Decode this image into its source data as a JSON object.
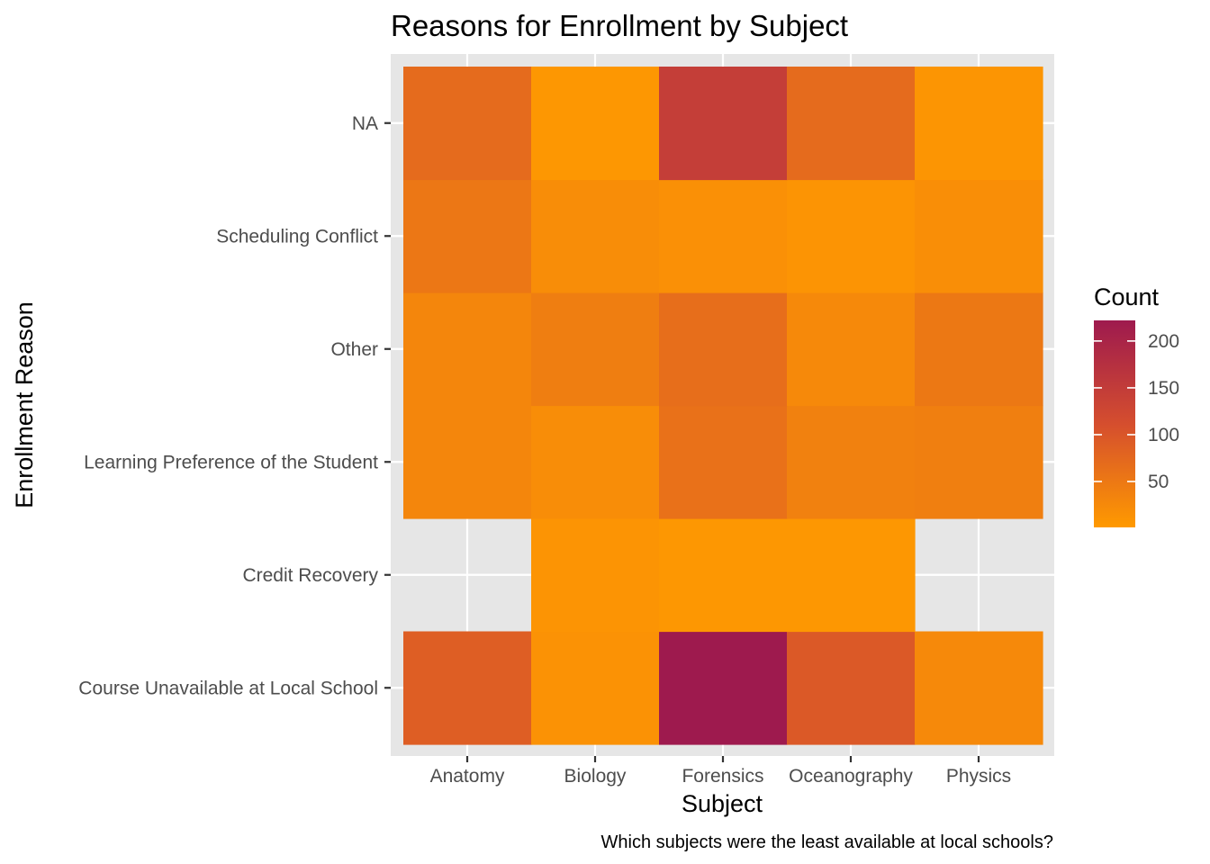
{
  "chart_data": {
    "type": "heatmap",
    "title": "Reasons for Enrollment by Subject",
    "xlabel": "Subject",
    "ylabel": "Enrollment Reason",
    "caption": "Which subjects were the least available at local schools?",
    "x_categories": [
      "Anatomy",
      "Biology",
      "Forensics",
      "Oceanography",
      "Physics"
    ],
    "y_categories": [
      "Course Unavailable at Local School",
      "Credit Recovery",
      "Learning Preference of the Student",
      "Other",
      "Scheduling Conflict",
      "NA"
    ],
    "values": [
      [
        88,
        12,
        222,
        95,
        25
      ],
      [
        null,
        10,
        6,
        6,
        null
      ],
      [
        30,
        20,
        60,
        37,
        40
      ],
      [
        30,
        42,
        65,
        25,
        50
      ],
      [
        52,
        20,
        15,
        10,
        18
      ],
      [
        70,
        6,
        145,
        70,
        8
      ]
    ],
    "legend": {
      "title": "Count",
      "breaks": [
        50,
        100,
        150,
        200
      ],
      "labels": [
        "50",
        "100",
        "150",
        "200"
      ],
      "min": 1,
      "max": 222,
      "low_color": "#FF9A00",
      "mid_color": "#D54E2E",
      "high_color": "#9E1A4E",
      "position": "right"
    },
    "panel_background": "#E6E6E6",
    "grid": true
  }
}
